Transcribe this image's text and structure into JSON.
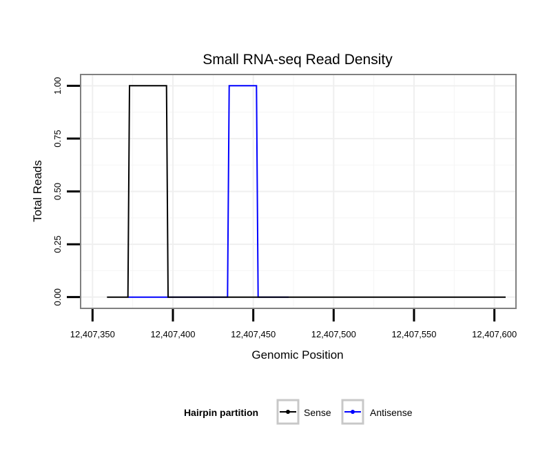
{
  "chart_data": {
    "type": "line",
    "title": "Small RNA-seq Read Density",
    "xlabel": "Genomic Position",
    "ylabel": "Total Reads",
    "xlim": [
      12407343,
      12407613
    ],
    "ylim": [
      -0.05,
      1.05
    ],
    "xticks": [
      12407350,
      12407400,
      12407450,
      12407500,
      12407550,
      12407600
    ],
    "xtick_labels": [
      "12,407,350",
      "12,407,400",
      "12,407,450",
      "12,407,500",
      "12,407,550",
      "12,407,600"
    ],
    "yticks": [
      0,
      0.25,
      0.5,
      0.75,
      1.0
    ],
    "ytick_labels": [
      "0.00",
      "0.25",
      "0.50",
      "0.75",
      "1.00"
    ],
    "grid": true,
    "legend": {
      "title": "Hairpin partition",
      "position": "bottom"
    },
    "series": [
      {
        "name": "Sense",
        "color": "#000000",
        "x": [
          12407359,
          12407372,
          12407373,
          12407396,
          12407397,
          12407607
        ],
        "y": [
          0,
          0,
          1,
          1,
          0,
          0
        ]
      },
      {
        "name": "Antisense",
        "color": "#0000ff",
        "x": [
          12407372,
          12407434,
          12407435,
          12407452,
          12407453,
          12407472
        ],
        "y": [
          0,
          0,
          1,
          1,
          0,
          0
        ]
      }
    ]
  }
}
